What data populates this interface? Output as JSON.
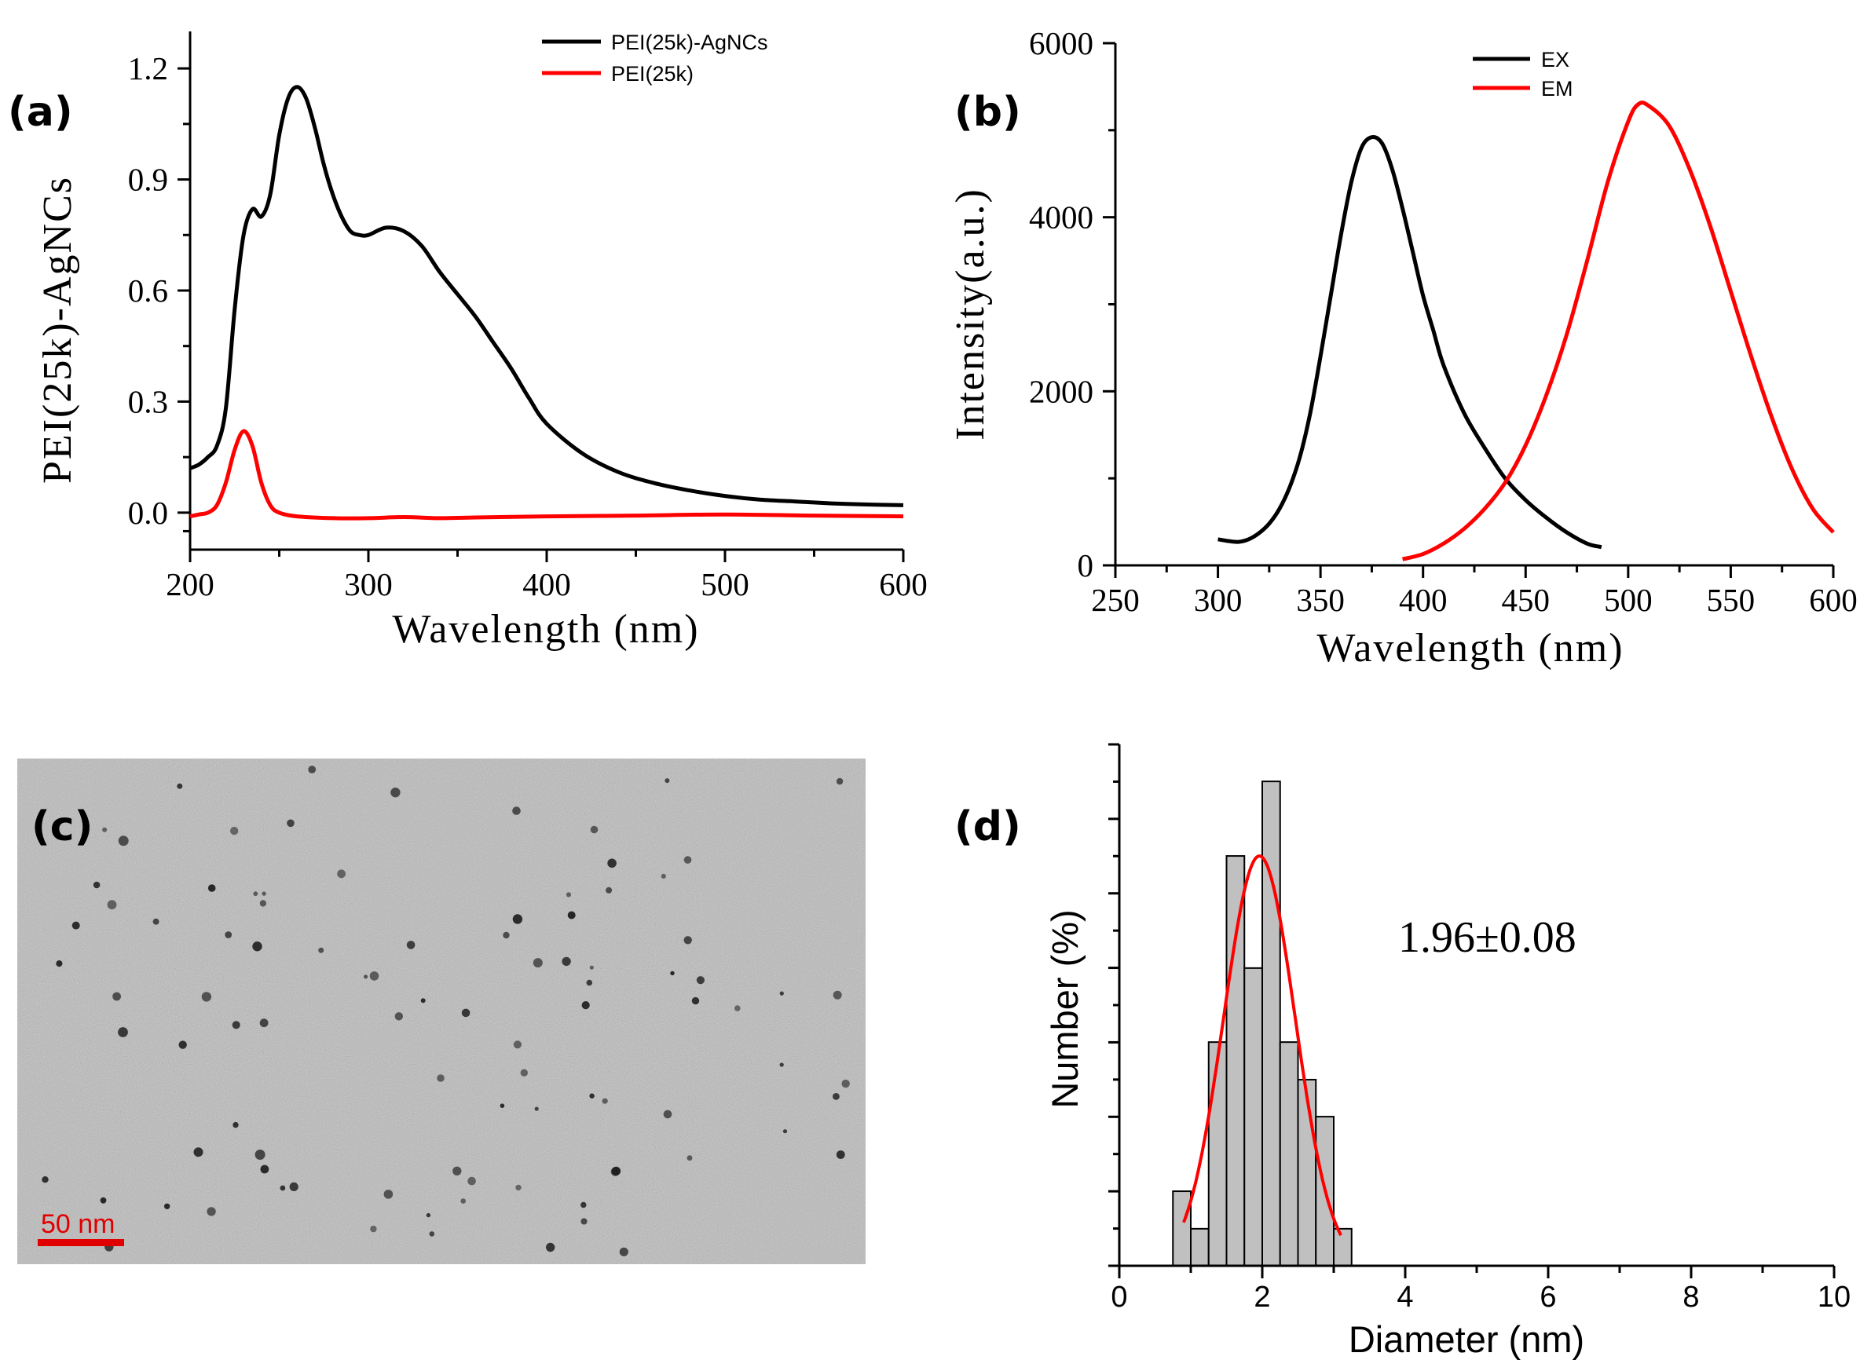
{
  "colors": {
    "black_series": "#000000",
    "red_series": "#ff0000",
    "bar_fill": "#c0c0c0",
    "scale_bar": "#e00000"
  },
  "panels": {
    "a": {
      "label": "(a)"
    },
    "b": {
      "label": "(b)"
    },
    "c": {
      "label": "(c)",
      "scale_bar_label": "50 nm"
    },
    "d": {
      "label": "(d)",
      "annotation": "1.96±0.08"
    }
  },
  "chart_data": [
    {
      "id": "a",
      "type": "line",
      "title": "",
      "xlabel": "Wavelength (nm)",
      "ylabel": "PEI(25k)-AgNCs",
      "xlim": [
        200,
        600
      ],
      "ylim": [
        -0.1,
        1.3
      ],
      "xticks": [
        "200",
        "300",
        "400",
        "500",
        "600"
      ],
      "yticks": [
        "0.0",
        "0.3",
        "0.6",
        "0.9",
        "1.2"
      ],
      "legend": "top-right",
      "series": [
        {
          "name": "PEI(25k)-AgNCs",
          "color": "#000000",
          "x": [
            200,
            205,
            210,
            215,
            220,
            225,
            230,
            235,
            240,
            245,
            250,
            255,
            260,
            265,
            270,
            275,
            280,
            285,
            290,
            295,
            300,
            310,
            320,
            330,
            340,
            350,
            360,
            370,
            380,
            390,
            400,
            420,
            440,
            460,
            480,
            500,
            520,
            540,
            560,
            580,
            600
          ],
          "y": [
            0.12,
            0.13,
            0.15,
            0.18,
            0.28,
            0.55,
            0.75,
            0.82,
            0.8,
            0.86,
            1.02,
            1.12,
            1.15,
            1.12,
            1.04,
            0.94,
            0.86,
            0.8,
            0.76,
            0.75,
            0.75,
            0.77,
            0.76,
            0.72,
            0.65,
            0.59,
            0.53,
            0.46,
            0.39,
            0.31,
            0.24,
            0.16,
            0.11,
            0.08,
            0.06,
            0.045,
            0.035,
            0.03,
            0.025,
            0.022,
            0.02
          ]
        },
        {
          "name": "PEI(25k)",
          "color": "#ff0000",
          "x": [
            200,
            205,
            210,
            215,
            220,
            225,
            230,
            235,
            240,
            245,
            250,
            260,
            280,
            300,
            320,
            340,
            360,
            400,
            450,
            500,
            550,
            600
          ],
          "y": [
            -0.01,
            -0.005,
            0.0,
            0.02,
            0.08,
            0.17,
            0.22,
            0.18,
            0.08,
            0.02,
            0.0,
            -0.01,
            -0.015,
            -0.015,
            -0.012,
            -0.015,
            -0.013,
            -0.01,
            -0.008,
            -0.005,
            -0.008,
            -0.01
          ]
        }
      ]
    },
    {
      "id": "b",
      "type": "line",
      "title": "",
      "xlabel": "Wavelength (nm)",
      "ylabel": "Intensity(a.u.)",
      "xlim": [
        250,
        600
      ],
      "ylim": [
        0,
        6000
      ],
      "xticks": [
        "250",
        "300",
        "350",
        "400",
        "450",
        "500",
        "550",
        "600"
      ],
      "yticks": [
        "0",
        "2000",
        "4000",
        "6000"
      ],
      "legend": "top-right",
      "series": [
        {
          "name": "EX",
          "color": "#000000",
          "x": [
            300,
            305,
            310,
            315,
            320,
            325,
            330,
            335,
            340,
            345,
            350,
            355,
            360,
            365,
            370,
            375,
            380,
            385,
            390,
            395,
            400,
            405,
            410,
            420,
            430,
            440,
            450,
            460,
            470,
            480,
            487
          ],
          "y": [
            300,
            280,
            270,
            300,
            370,
            480,
            650,
            900,
            1250,
            1750,
            2400,
            3100,
            3800,
            4400,
            4800,
            4920,
            4850,
            4550,
            4100,
            3600,
            3100,
            2700,
            2300,
            1750,
            1350,
            1000,
            750,
            550,
            380,
            250,
            210
          ]
        },
        {
          "name": "EM",
          "color": "#ff0000",
          "x": [
            390,
            400,
            410,
            420,
            430,
            440,
            450,
            460,
            470,
            480,
            490,
            500,
            505,
            510,
            520,
            530,
            540,
            550,
            560,
            570,
            580,
            590,
            600
          ],
          "y": [
            70,
            130,
            250,
            420,
            650,
            950,
            1380,
            1950,
            2650,
            3500,
            4400,
            5100,
            5300,
            5280,
            5050,
            4550,
            3900,
            3150,
            2400,
            1700,
            1100,
            650,
            380
          ]
        }
      ]
    },
    {
      "id": "d",
      "type": "bar",
      "title": "",
      "xlabel": "Diameter (nm)",
      "ylabel": "Number (%)",
      "xlim": [
        0,
        10
      ],
      "ylim": [
        0,
        100
      ],
      "xticks": [
        "0",
        "2",
        "4",
        "6",
        "8",
        "10"
      ],
      "bar_width": 0.25,
      "bars": {
        "x": [
          0.875,
          1.125,
          1.375,
          1.625,
          1.875,
          2.125,
          2.375,
          2.625,
          2.875,
          3.125
        ],
        "values": [
          14.3,
          7.1,
          42.9,
          78.6,
          57.1,
          92.9,
          42.9,
          35.7,
          28.6,
          7.1
        ]
      },
      "fit": {
        "type": "gaussian",
        "color": "#ff0000",
        "center": 1.96,
        "sigma": 0.5,
        "peak": 78.6,
        "x_range": [
          0.9,
          3.1
        ]
      }
    }
  ]
}
